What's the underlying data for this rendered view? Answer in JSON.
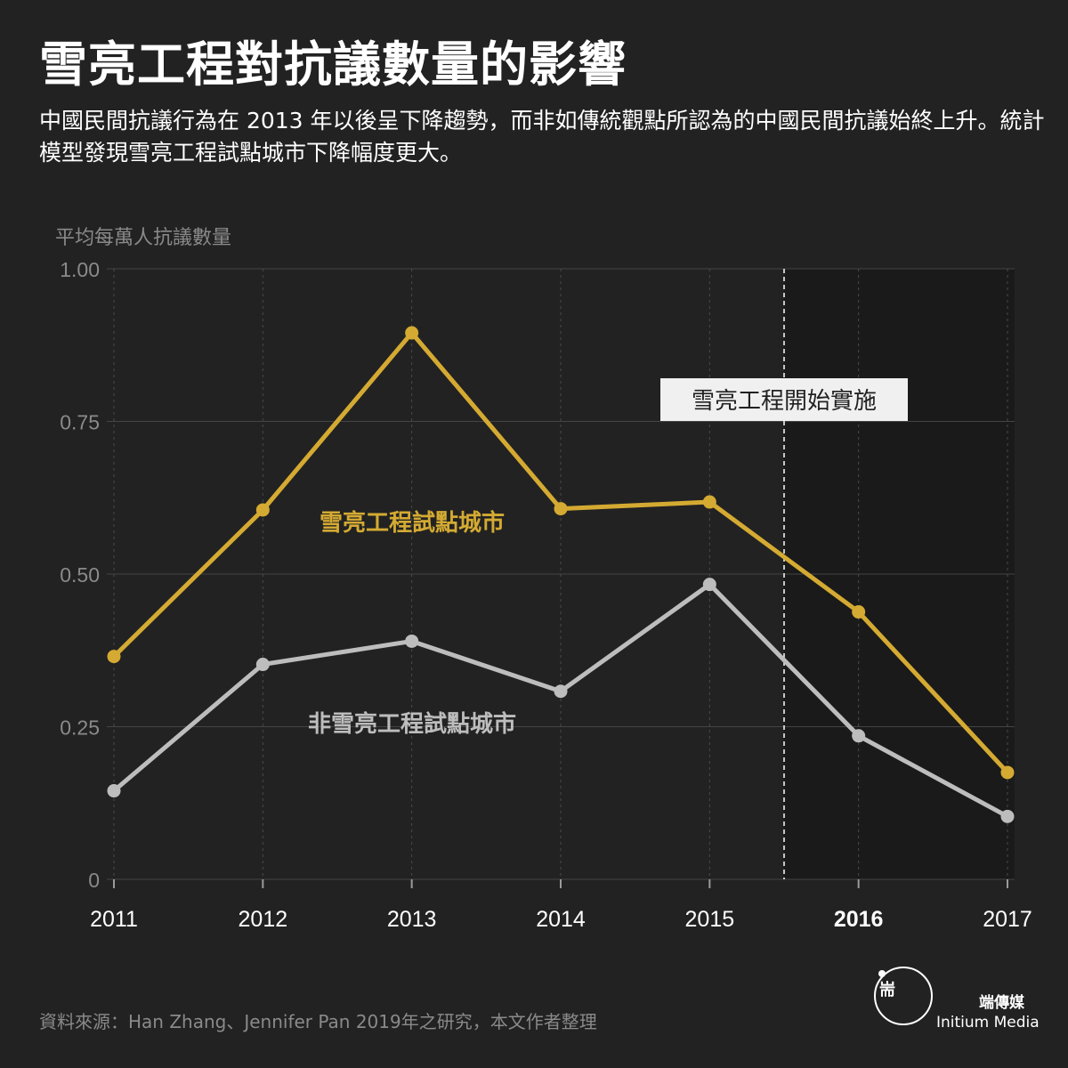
{
  "header": {
    "title": "雪亮工程對抗議數量的影響",
    "subtitle": "中國民間抗議行為在 2013 年以後呈下降趨勢，而非如傳統觀點所認為的中國民間抗議始終上升。統計模型發現雪亮工程試點城市下降幅度更大。"
  },
  "chart_data": {
    "type": "line",
    "ylabel": "平均每萬人抗議數量",
    "x": [
      "2011",
      "2012",
      "2013",
      "2014",
      "2015",
      "2016",
      "2017"
    ],
    "highlight_x": "2016",
    "ylim": [
      0,
      1
    ],
    "yticks": [
      0,
      0.25,
      0.5,
      0.75,
      1.0
    ],
    "ytick_labels": [
      "0",
      "0.25",
      "0.50",
      "0.75",
      "1.00"
    ],
    "grid": true,
    "series": [
      {
        "name": "雪亮工程試點城市",
        "color": "#d4aa32",
        "values": [
          0.365,
          0.605,
          0.895,
          0.607,
          0.618,
          0.438,
          0.175
        ]
      },
      {
        "name": "非雪亮工程試點城市",
        "color": "#bdbdbd",
        "values": [
          0.145,
          0.352,
          0.39,
          0.308,
          0.483,
          0.235,
          0.103
        ]
      }
    ],
    "annotation": {
      "label": "雪亮工程開始實施",
      "at_x": 2015.5
    },
    "shaded_region": {
      "from_x": 2015.5,
      "to_x": 2017
    }
  },
  "footer": {
    "source": "資料來源：Han Zhang、Jennifer Pan 2019年之研究，本文作者整理",
    "logo_zh": "端傳媒",
    "logo_en": "Initium Media",
    "logo_glyph": "耑",
    "logo_icon": "initium-logo-icon"
  },
  "colors": {
    "background": "#222222",
    "shaded": "#1a1a1a",
    "grid": "#444444",
    "gold": "#d4aa32",
    "grey": "#bdbdbd"
  }
}
